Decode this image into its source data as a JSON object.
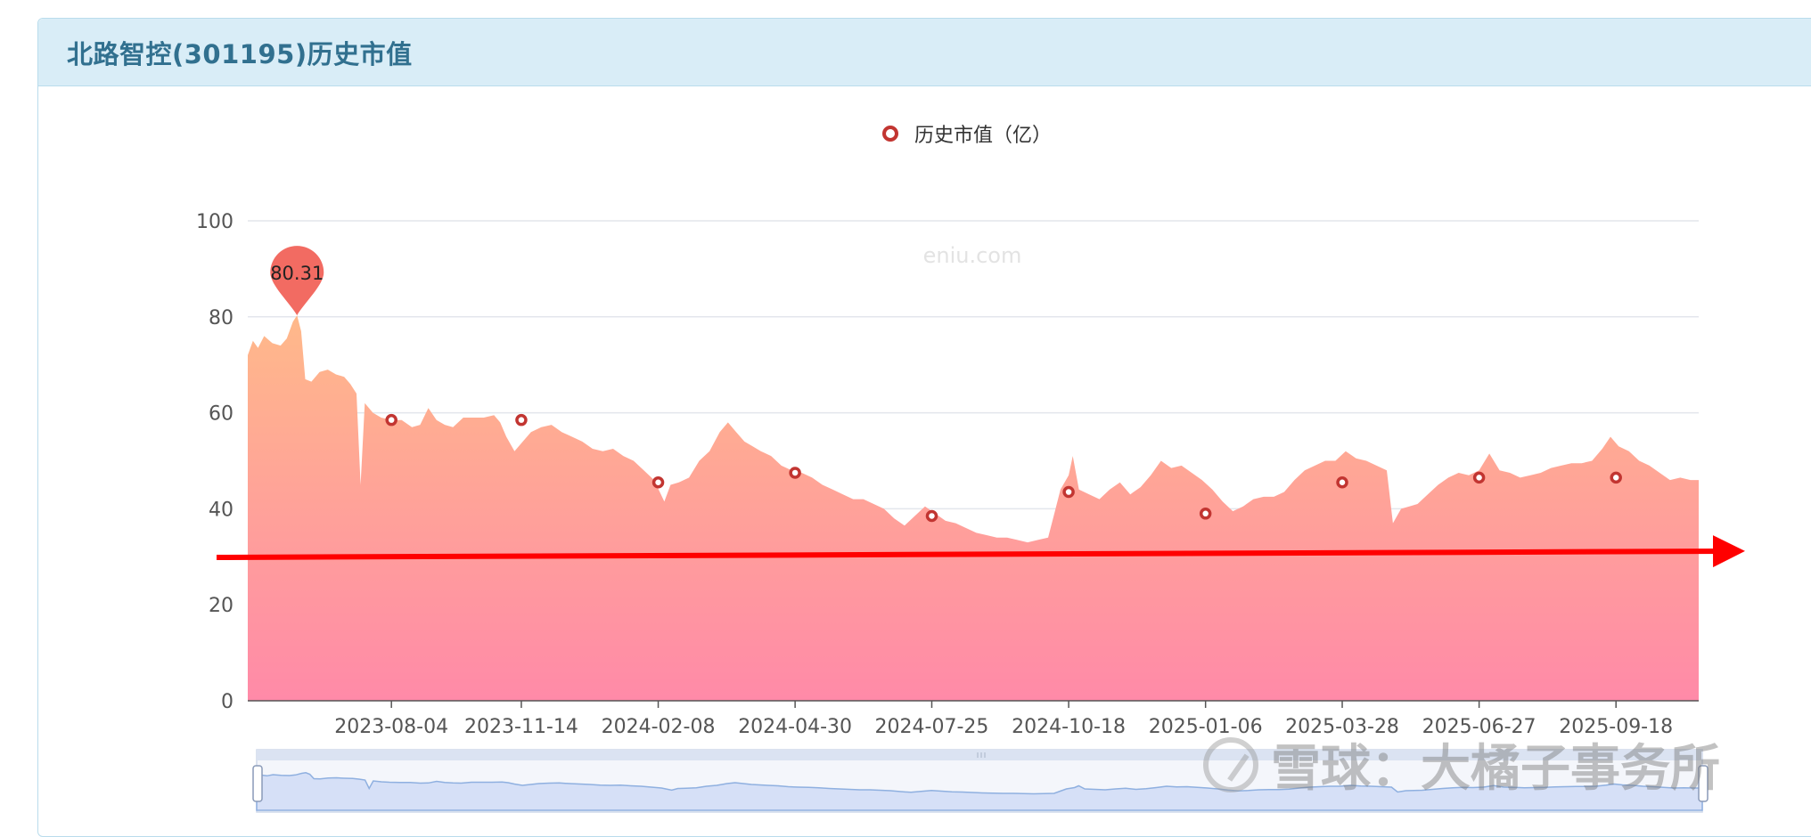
{
  "panel": {
    "title": "北路智控(301195)历史市值"
  },
  "legend": {
    "label": "历史市值（亿）",
    "marker_color": "#c23531"
  },
  "site_watermark": "eniu.com",
  "corner_watermark": "雪球：大橘子事务所",
  "colors": {
    "area_top": "#ffb98a",
    "area_bottom": "#ff8aa8",
    "grid": "#e3e6ec",
    "marker": "#c23531",
    "pin": "#f26b62",
    "arrow": "#ff0000",
    "slider_fill": "#d6e0f7",
    "slider_line": "#8fb0e0"
  },
  "chart_data": {
    "type": "area",
    "title": "",
    "xlabel": "",
    "ylabel": "",
    "ylim": [
      0,
      100
    ],
    "y_ticks": [
      0,
      20,
      40,
      60,
      80,
      100
    ],
    "x_tick_labels": [
      "2023-08-04",
      "2023-11-14",
      "2024-02-08",
      "2024-04-30",
      "2024-07-25",
      "2024-10-18",
      "2025-01-06",
      "2025-03-28",
      "2025-06-27",
      "2025-09-18"
    ],
    "grid": true,
    "legend_position": "top-center",
    "max_pin": {
      "label": "80.31",
      "value": 80.31
    },
    "series": [
      {
        "name": "历史市值（亿）",
        "points": [
          [
            0.0,
            72
          ],
          [
            0.25,
            75
          ],
          [
            0.5,
            73.5
          ],
          [
            0.8,
            76
          ],
          [
            1.2,
            74.5
          ],
          [
            1.6,
            74
          ],
          [
            1.9,
            75.5
          ],
          [
            2.2,
            79
          ],
          [
            2.4,
            80.31
          ],
          [
            2.6,
            77
          ],
          [
            2.8,
            67
          ],
          [
            3.1,
            66.5
          ],
          [
            3.5,
            68.5
          ],
          [
            3.9,
            69
          ],
          [
            4.3,
            68
          ],
          [
            4.7,
            67.5
          ],
          [
            5.0,
            66
          ],
          [
            5.3,
            64
          ],
          [
            5.5,
            45
          ],
          [
            5.7,
            62
          ],
          [
            6.1,
            60
          ],
          [
            6.5,
            59
          ],
          [
            7.0,
            58.5
          ],
          [
            7.5,
            58.5
          ],
          [
            8.0,
            57
          ],
          [
            8.4,
            57.5
          ],
          [
            8.8,
            61
          ],
          [
            9.2,
            58.5
          ],
          [
            9.6,
            57.5
          ],
          [
            10.0,
            57
          ],
          [
            10.5,
            59
          ],
          [
            11.0,
            59
          ],
          [
            11.5,
            59
          ],
          [
            12.0,
            59.5
          ],
          [
            12.3,
            58
          ],
          [
            12.6,
            55
          ],
          [
            13.0,
            52
          ],
          [
            13.4,
            54
          ],
          [
            13.8,
            56
          ],
          [
            14.3,
            57
          ],
          [
            14.8,
            57.5
          ],
          [
            15.3,
            56
          ],
          [
            15.8,
            55
          ],
          [
            16.3,
            54
          ],
          [
            16.8,
            52.5
          ],
          [
            17.3,
            52
          ],
          [
            17.8,
            52.5
          ],
          [
            18.3,
            51
          ],
          [
            18.8,
            50
          ],
          [
            19.3,
            48
          ],
          [
            19.8,
            46
          ],
          [
            20.3,
            41.5
          ],
          [
            20.6,
            45
          ],
          [
            21.0,
            45.5
          ],
          [
            21.5,
            46.5
          ],
          [
            22.0,
            50
          ],
          [
            22.5,
            52
          ],
          [
            23.0,
            56
          ],
          [
            23.4,
            58
          ],
          [
            23.8,
            56
          ],
          [
            24.2,
            54
          ],
          [
            24.6,
            53
          ],
          [
            25.0,
            52
          ],
          [
            25.5,
            51
          ],
          [
            26.0,
            49
          ],
          [
            26.5,
            48
          ],
          [
            27.0,
            47.5
          ],
          [
            27.5,
            46.5
          ],
          [
            28.0,
            45
          ],
          [
            28.5,
            44
          ],
          [
            29.0,
            43
          ],
          [
            29.5,
            42
          ],
          [
            30.0,
            42
          ],
          [
            30.5,
            41
          ],
          [
            31.0,
            40
          ],
          [
            31.5,
            38
          ],
          [
            32.0,
            36.5
          ],
          [
            32.5,
            38.5
          ],
          [
            33.0,
            40.5
          ],
          [
            33.5,
            39
          ],
          [
            34.0,
            37.5
          ],
          [
            34.5,
            37
          ],
          [
            35.0,
            36
          ],
          [
            35.5,
            35
          ],
          [
            36.0,
            34.5
          ],
          [
            36.5,
            34
          ],
          [
            37.0,
            34
          ],
          [
            37.5,
            33.5
          ],
          [
            38.0,
            33
          ],
          [
            38.5,
            33.5
          ],
          [
            39.0,
            34
          ],
          [
            39.3,
            39
          ],
          [
            39.6,
            44
          ],
          [
            40.0,
            47
          ],
          [
            40.2,
            51
          ],
          [
            40.5,
            44
          ],
          [
            41.0,
            43
          ],
          [
            41.5,
            42
          ],
          [
            42.0,
            44
          ],
          [
            42.5,
            45.5
          ],
          [
            43.0,
            43
          ],
          [
            43.5,
            44.5
          ],
          [
            44.0,
            47
          ],
          [
            44.5,
            50
          ],
          [
            45.0,
            48.5
          ],
          [
            45.5,
            49
          ],
          [
            46.0,
            47.5
          ],
          [
            46.5,
            46
          ],
          [
            47.0,
            44
          ],
          [
            47.5,
            41.5
          ],
          [
            48.0,
            39.5
          ],
          [
            48.5,
            40.5
          ],
          [
            49.0,
            42
          ],
          [
            49.5,
            42.5
          ],
          [
            50.0,
            42.5
          ],
          [
            50.5,
            43.5
          ],
          [
            51.0,
            46
          ],
          [
            51.5,
            48
          ],
          [
            52.0,
            49
          ],
          [
            52.5,
            50
          ],
          [
            53.0,
            50
          ],
          [
            53.5,
            52
          ],
          [
            54.0,
            50.5
          ],
          [
            54.5,
            50
          ],
          [
            55.0,
            49
          ],
          [
            55.5,
            48
          ],
          [
            55.8,
            37
          ],
          [
            56.2,
            40
          ],
          [
            56.6,
            40.5
          ],
          [
            57.0,
            41
          ],
          [
            57.5,
            43
          ],
          [
            58.0,
            45
          ],
          [
            58.5,
            46.5
          ],
          [
            59.0,
            47.5
          ],
          [
            59.5,
            47
          ],
          [
            60.0,
            48
          ],
          [
            60.5,
            51.5
          ],
          [
            61.0,
            48
          ],
          [
            61.5,
            47.5
          ],
          [
            62.0,
            46.5
          ],
          [
            62.5,
            47
          ],
          [
            63.0,
            47.5
          ],
          [
            63.5,
            48.5
          ],
          [
            64.0,
            49
          ],
          [
            64.5,
            49.5
          ],
          [
            65.0,
            49.5
          ],
          [
            65.5,
            50
          ],
          [
            66.0,
            52.5
          ],
          [
            66.4,
            55
          ],
          [
            66.8,
            53
          ],
          [
            67.3,
            52
          ],
          [
            67.8,
            50
          ],
          [
            68.3,
            49
          ],
          [
            68.8,
            47.5
          ],
          [
            69.3,
            46
          ],
          [
            69.8,
            46.5
          ],
          [
            70.3,
            46
          ],
          [
            70.7,
            46
          ]
        ],
        "markers": [
          {
            "x": 7.0,
            "value": 58.5
          },
          {
            "x": 13.33,
            "value": 58.5
          },
          {
            "x": 20.0,
            "value": 45.5
          },
          {
            "x": 26.67,
            "value": 47.5
          },
          {
            "x": 33.33,
            "value": 38.5
          },
          {
            "x": 40.0,
            "value": 43.5
          },
          {
            "x": 46.67,
            "value": 39
          },
          {
            "x": 53.33,
            "value": 45.5
          },
          {
            "x": 60.0,
            "value": 46.5
          },
          {
            "x": 66.67,
            "value": 46.5
          }
        ]
      }
    ]
  }
}
